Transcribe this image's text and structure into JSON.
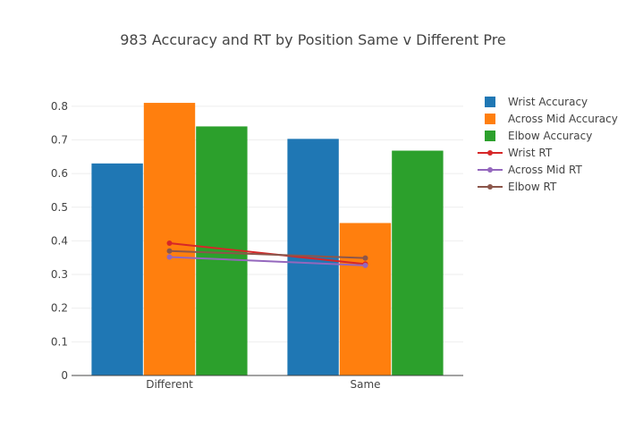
{
  "chart_data": {
    "type": "bar",
    "title": "983 Accuracy and RT by Position Same v Different Pre",
    "xlabel": "",
    "ylabel": "",
    "categories": [
      "Different",
      "Same"
    ],
    "ylim": [
      0,
      0.85
    ],
    "yticks": [
      0,
      0.1,
      0.2,
      0.3,
      0.4,
      0.5,
      0.6,
      0.7,
      0.8
    ],
    "ytick_labels": [
      "0",
      "0.1",
      "0.2",
      "0.3",
      "0.4",
      "0.5",
      "0.6",
      "0.7",
      "0.8"
    ],
    "grid": true,
    "legend_position": "top-right",
    "bar_series": [
      {
        "name": "Wrist Accuracy",
        "values": [
          0.63,
          0.703
        ],
        "color": "#1f77b4"
      },
      {
        "name": "Across Mid Accuracy",
        "values": [
          0.81,
          0.453
        ],
        "color": "#ff7f0e"
      },
      {
        "name": "Elbow Accuracy",
        "values": [
          0.74,
          0.668
        ],
        "color": "#2ca02c"
      }
    ],
    "line_series": [
      {
        "name": "Wrist RT",
        "values": [
          0.393,
          0.331
        ],
        "color": "#d62728"
      },
      {
        "name": "Across Mid RT",
        "values": [
          0.352,
          0.327
        ],
        "color": "#9467bd"
      },
      {
        "name": "Elbow RT",
        "values": [
          0.37,
          0.349
        ],
        "color": "#8c564b"
      }
    ]
  }
}
